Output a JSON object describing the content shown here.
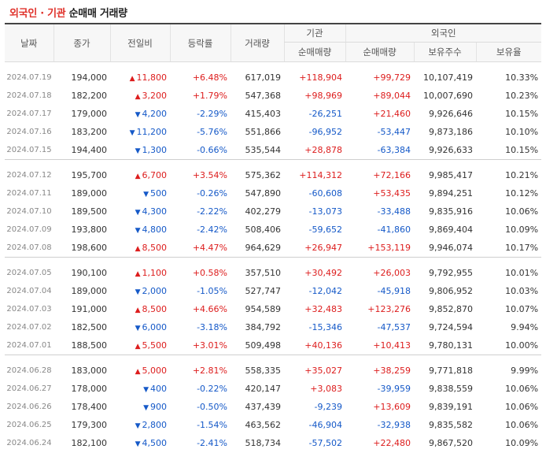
{
  "title": {
    "part1": "외국인 · 기관",
    "part2": "순매매 거래량"
  },
  "headers": {
    "date": "날짜",
    "close": "종가",
    "change": "전일비",
    "rate": "등락률",
    "volume": "거래량",
    "inst_group": "기관",
    "inst_net": "순매매량",
    "foreign_group": "외국인",
    "foreign_net": "순매매량",
    "foreign_hold": "보유주수",
    "foreign_ratio": "보유율"
  },
  "groups": [
    {
      "rows": [
        {
          "date": "2024.07.19",
          "close": "194,000",
          "dir": "up",
          "change": "11,800",
          "rate": "+6.48%",
          "volume": "617,019",
          "inst": "+118,904",
          "foreign": "+99,729",
          "hold": "10,107,419",
          "ratio": "10.33%"
        },
        {
          "date": "2024.07.18",
          "close": "182,200",
          "dir": "up",
          "change": "3,200",
          "rate": "+1.79%",
          "volume": "547,368",
          "inst": "+98,969",
          "foreign": "+89,044",
          "hold": "10,007,690",
          "ratio": "10.23%"
        },
        {
          "date": "2024.07.17",
          "close": "179,000",
          "dir": "down",
          "change": "4,200",
          "rate": "-2.29%",
          "volume": "415,403",
          "inst": "-26,251",
          "foreign": "+21,460",
          "hold": "9,926,646",
          "ratio": "10.15%"
        },
        {
          "date": "2024.07.16",
          "close": "183,200",
          "dir": "down",
          "change": "11,200",
          "rate": "-5.76%",
          "volume": "551,866",
          "inst": "-96,952",
          "foreign": "-53,447",
          "hold": "9,873,186",
          "ratio": "10.10%"
        },
        {
          "date": "2024.07.15",
          "close": "194,400",
          "dir": "down",
          "change": "1,300",
          "rate": "-0.66%",
          "volume": "535,544",
          "inst": "+28,878",
          "foreign": "-63,384",
          "hold": "9,926,633",
          "ratio": "10.15%"
        }
      ]
    },
    {
      "rows": [
        {
          "date": "2024.07.12",
          "close": "195,700",
          "dir": "up",
          "change": "6,700",
          "rate": "+3.54%",
          "volume": "575,362",
          "inst": "+114,312",
          "foreign": "+72,166",
          "hold": "9,985,417",
          "ratio": "10.21%"
        },
        {
          "date": "2024.07.11",
          "close": "189,000",
          "dir": "down",
          "change": "500",
          "rate": "-0.26%",
          "volume": "547,890",
          "inst": "-60,608",
          "foreign": "+53,435",
          "hold": "9,894,251",
          "ratio": "10.12%"
        },
        {
          "date": "2024.07.10",
          "close": "189,500",
          "dir": "down",
          "change": "4,300",
          "rate": "-2.22%",
          "volume": "402,279",
          "inst": "-13,073",
          "foreign": "-33,488",
          "hold": "9,835,916",
          "ratio": "10.06%"
        },
        {
          "date": "2024.07.09",
          "close": "193,800",
          "dir": "down",
          "change": "4,800",
          "rate": "-2.42%",
          "volume": "508,406",
          "inst": "-59,652",
          "foreign": "-41,860",
          "hold": "9,869,404",
          "ratio": "10.09%"
        },
        {
          "date": "2024.07.08",
          "close": "198,600",
          "dir": "up",
          "change": "8,500",
          "rate": "+4.47%",
          "volume": "964,629",
          "inst": "+26,947",
          "foreign": "+153,119",
          "hold": "9,946,074",
          "ratio": "10.17%"
        }
      ]
    },
    {
      "rows": [
        {
          "date": "2024.07.05",
          "close": "190,100",
          "dir": "up",
          "change": "1,100",
          "rate": "+0.58%",
          "volume": "357,510",
          "inst": "+30,492",
          "foreign": "+26,003",
          "hold": "9,792,955",
          "ratio": "10.01%"
        },
        {
          "date": "2024.07.04",
          "close": "189,000",
          "dir": "down",
          "change": "2,000",
          "rate": "-1.05%",
          "volume": "527,747",
          "inst": "-12,042",
          "foreign": "-45,918",
          "hold": "9,806,952",
          "ratio": "10.03%"
        },
        {
          "date": "2024.07.03",
          "close": "191,000",
          "dir": "up",
          "change": "8,500",
          "rate": "+4.66%",
          "volume": "954,589",
          "inst": "+32,483",
          "foreign": "+123,276",
          "hold": "9,852,870",
          "ratio": "10.07%"
        },
        {
          "date": "2024.07.02",
          "close": "182,500",
          "dir": "down",
          "change": "6,000",
          "rate": "-3.18%",
          "volume": "384,792",
          "inst": "-15,346",
          "foreign": "-47,537",
          "hold": "9,724,594",
          "ratio": "9.94%"
        },
        {
          "date": "2024.07.01",
          "close": "188,500",
          "dir": "up",
          "change": "5,500",
          "rate": "+3.01%",
          "volume": "509,498",
          "inst": "+40,136",
          "foreign": "+10,413",
          "hold": "9,780,131",
          "ratio": "10.00%"
        }
      ]
    },
    {
      "rows": [
        {
          "date": "2024.06.28",
          "close": "183,000",
          "dir": "up",
          "change": "5,000",
          "rate": "+2.81%",
          "volume": "558,335",
          "inst": "+35,027",
          "foreign": "+38,259",
          "hold": "9,771,818",
          "ratio": "9.99%"
        },
        {
          "date": "2024.06.27",
          "close": "178,000",
          "dir": "down",
          "change": "400",
          "rate": "-0.22%",
          "volume": "420,147",
          "inst": "+3,083",
          "foreign": "-39,959",
          "hold": "9,838,559",
          "ratio": "10.06%"
        },
        {
          "date": "2024.06.26",
          "close": "178,400",
          "dir": "down",
          "change": "900",
          "rate": "-0.50%",
          "volume": "437,439",
          "inst": "-9,239",
          "foreign": "+13,609",
          "hold": "9,839,191",
          "ratio": "10.06%"
        },
        {
          "date": "2024.06.25",
          "close": "179,300",
          "dir": "down",
          "change": "2,800",
          "rate": "-1.54%",
          "volume": "463,562",
          "inst": "-46,904",
          "foreign": "-32,938",
          "hold": "9,835,582",
          "ratio": "10.06%"
        },
        {
          "date": "2024.06.24",
          "close": "182,100",
          "dir": "down",
          "change": "4,500",
          "rate": "-2.41%",
          "volume": "518,734",
          "inst": "-57,502",
          "foreign": "+22,480",
          "hold": "9,867,520",
          "ratio": "10.09%"
        }
      ]
    }
  ],
  "colors": {
    "up": "#dd1d1d",
    "down": "#1559c8",
    "title_accent": "#e0322b"
  },
  "icons": {
    "up": "triangle-up-icon",
    "down": "triangle-down-icon"
  }
}
